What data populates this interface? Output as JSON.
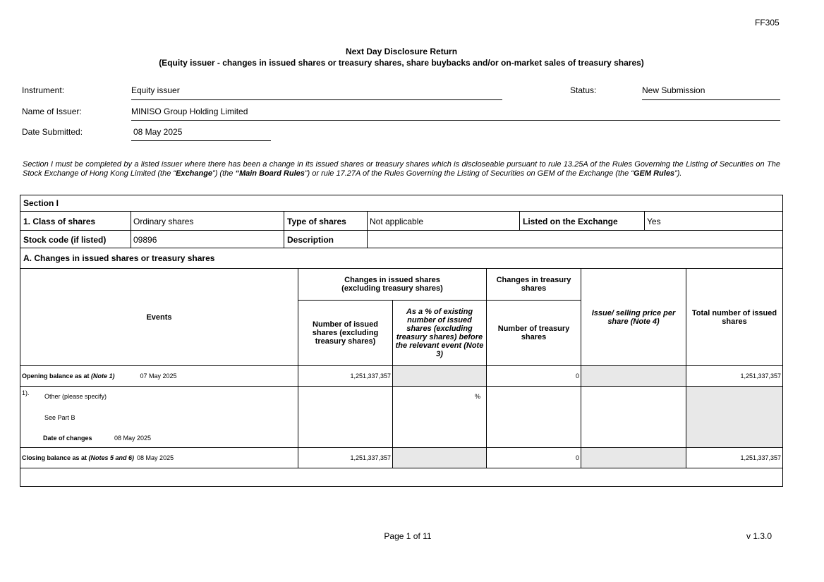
{
  "form_code": "FF305",
  "title": "Next Day Disclosure Return",
  "subtitle": "(Equity issuer - changes in issued shares or treasury shares, share buybacks and/or on-market sales of treasury shares)",
  "header": {
    "instrument_label": "Instrument:",
    "instrument": "Equity issuer",
    "status_label": "Status:",
    "status": "New Submission",
    "issuer_label": "Name of Issuer:",
    "issuer": "MINISO Group Holding Limited",
    "date_label": "Date Submitted:",
    "date": "08 May 2025"
  },
  "intro": {
    "p1": "Section I must be completed by a listed issuer where there has been a change in its issued shares or treasury shares which is discloseable pursuant to rule 13.25A of the Rules Governing the Listing of Securities on The Stock Exchange of Hong Kong Limited (the “",
    "exchange": "Exchange",
    "p2": "”) (the ",
    "main_board": "“Main Board Rules",
    "p3": "”) or rule 17.27A of the Rules Governing the Listing of Securities on GEM of the Exchange (the “",
    "gem": "GEM Rules",
    "p4": "”)."
  },
  "section": {
    "title": "Section I",
    "class_label": "1. Class of shares",
    "class": "Ordinary shares",
    "type_label": "Type of shares",
    "type": "Not applicable",
    "listed_label": "Listed on the Exchange",
    "listed": "Yes",
    "stock_code_label": "Stock code (if listed)",
    "stock_code": "09896",
    "description_label": "Description",
    "description": "",
    "part_a": "A. Changes in issued shares or treasury shares"
  },
  "table": {
    "events": "Events",
    "group_issued": "Changes in issued shares\n(excluding treasury shares)",
    "group_treasury": "Changes in treasury shares",
    "col_issued": "Number of issued shares (excluding treasury shares)",
    "col_pct": "As a % of existing number of issued shares (excluding treasury shares) before the relevant event (Note 3)",
    "col_treasury": "Number of treasury shares",
    "col_price": "Issue/ selling price per share (Note 4)",
    "col_total": "Total number of issued shares",
    "opening": {
      "label": "Opening balance as at ",
      "note": "(Note 1)",
      "date": "07 May 2025",
      "issued": "1,251,337,357",
      "treasury": "0",
      "total": "1,251,337,357"
    },
    "event": {
      "num": "1).",
      "type": "Other (please specify)",
      "detail": "See Part B",
      "date_label": "Date of changes",
      "date": "08 May 2025",
      "pct": "%"
    },
    "closing": {
      "label": "Closing balance as at ",
      "note": "(Notes 5 and 6)",
      "date": "08 May 2025",
      "issued": "1,251,337,357",
      "treasury": "0",
      "total": "1,251,337,357"
    }
  },
  "footer": {
    "page": "Page 1 of 11",
    "version": "v 1.3.0"
  }
}
